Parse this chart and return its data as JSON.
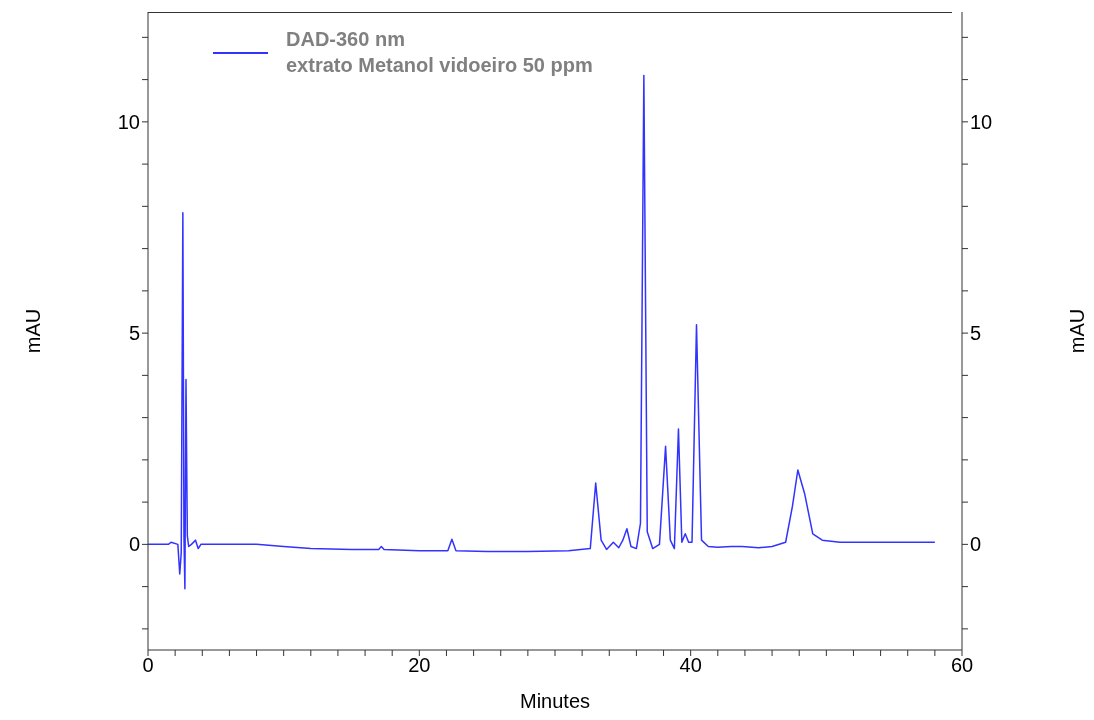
{
  "chart_data": {
    "type": "line",
    "xlabel": "Minutes",
    "ylabel": "mAU",
    "y2label": "mAU",
    "legend": "top left",
    "xlim": [
      0,
      60
    ],
    "xticks": [
      0,
      {
        "value": 2,
        "label": null
      },
      {
        "value": 4,
        "label": null
      },
      {
        "value": 6,
        "label": null
      },
      {
        "value": 8,
        "label": null
      },
      {
        "value": 10,
        "label": null
      },
      {
        "value": 12,
        "label": null
      },
      {
        "value": 14,
        "label": null
      },
      {
        "value": 16,
        "label": null
      },
      {
        "value": 18,
        "label": null
      },
      20,
      {
        "value": 22,
        "label": null
      },
      {
        "value": 24,
        "label": null
      },
      {
        "value": 26,
        "label": null
      },
      {
        "value": 28,
        "label": null
      },
      {
        "value": 30,
        "label": null
      },
      {
        "value": 32,
        "label": null
      },
      {
        "value": 34,
        "label": null
      },
      {
        "value": 36,
        "label": null
      },
      {
        "value": 38,
        "label": null
      },
      40,
      {
        "value": 42,
        "label": null
      },
      {
        "value": 44,
        "label": null
      },
      {
        "value": 46,
        "label": null
      },
      {
        "value": 48,
        "label": null
      },
      {
        "value": 50,
        "label": null
      },
      {
        "value": 52,
        "label": null
      },
      {
        "value": 54,
        "label": null
      },
      {
        "value": 56,
        "label": null
      },
      {
        "value": 58,
        "label": null
      },
      60
    ],
    "ylim": [
      -2.5,
      12.6
    ],
    "yticks": [
      {
        "value": -2,
        "label": null
      },
      {
        "value": -1,
        "label": null
      },
      0,
      {
        "value": 1,
        "label": null
      },
      {
        "value": 2,
        "label": null
      },
      {
        "value": 3,
        "label": null
      },
      {
        "value": 4,
        "label": null
      },
      5,
      {
        "value": 6,
        "label": null
      },
      {
        "value": 7,
        "label": null
      },
      {
        "value": 8,
        "label": null
      },
      {
        "value": 9,
        "label": null
      },
      10,
      {
        "value": 11,
        "label": null
      },
      {
        "value": 12,
        "label": null
      }
    ],
    "y2lim": [
      -2.5,
      12.6
    ],
    "y2ticks": [
      {
        "value": -2,
        "label": null
      },
      {
        "value": -1,
        "label": null
      },
      0,
      {
        "value": 1,
        "label": null
      },
      {
        "value": 2,
        "label": null
      },
      {
        "value": 3,
        "label": null
      },
      {
        "value": 4,
        "label": null
      },
      5,
      {
        "value": 6,
        "label": null
      },
      {
        "value": 7,
        "label": null
      },
      {
        "value": 8,
        "label": null
      },
      {
        "value": 9,
        "label": null
      },
      10,
      {
        "value": 11,
        "label": null
      },
      {
        "value": 12,
        "label": null
      }
    ],
    "series": [
      {
        "name": "DAD-360 nm\nextrato Metanol vidoeiro 50 ppm",
        "color": "#3333ff",
        "x": [
          0,
          1.5,
          1.7,
          2.2,
          2.34,
          2.45,
          2.57,
          2.65,
          2.72,
          2.8,
          2.9,
          3.0,
          3.2,
          3.5,
          3.7,
          3.9,
          5,
          8,
          10,
          12,
          15,
          17.0,
          17.2,
          17.4,
          20,
          22.1,
          22.4,
          22.7,
          25,
          28,
          31,
          32.6,
          33.0,
          33.4,
          33.8,
          34.3,
          34.7,
          35.0,
          35.3,
          35.6,
          36.0,
          36.3,
          36.55,
          36.8,
          37.2,
          37.7,
          38.15,
          38.5,
          38.8,
          39.1,
          39.35,
          39.6,
          39.85,
          40.1,
          40.43,
          40.8,
          41.3,
          42,
          43,
          43.8,
          45,
          46,
          47,
          47.5,
          47.9,
          48.4,
          49,
          49.7,
          51,
          54,
          58
        ],
        "values": [
          0,
          0,
          0.05,
          0,
          -0.7,
          -0.2,
          7.85,
          0.2,
          -1.05,
          3.9,
          0.2,
          -0.05,
          0,
          0.1,
          -0.1,
          0,
          0,
          0,
          -0.05,
          -0.1,
          -0.12,
          -0.12,
          -0.05,
          -0.12,
          -0.15,
          -0.15,
          0.12,
          -0.15,
          -0.17,
          -0.17,
          -0.15,
          -0.1,
          1.45,
          0.1,
          -0.12,
          0.05,
          -0.08,
          0.1,
          0.37,
          -0.05,
          -0.1,
          0.5,
          11.1,
          0.3,
          -0.1,
          0,
          2.32,
          0.1,
          -0.1,
          2.73,
          0.05,
          0.25,
          0.05,
          0.05,
          5.2,
          0.1,
          -0.05,
          -0.07,
          -0.05,
          -0.05,
          -0.08,
          -0.05,
          0.05,
          0.9,
          1.76,
          1.2,
          0.25,
          0.1,
          0.05,
          0.05,
          0.05
        ]
      }
    ]
  }
}
